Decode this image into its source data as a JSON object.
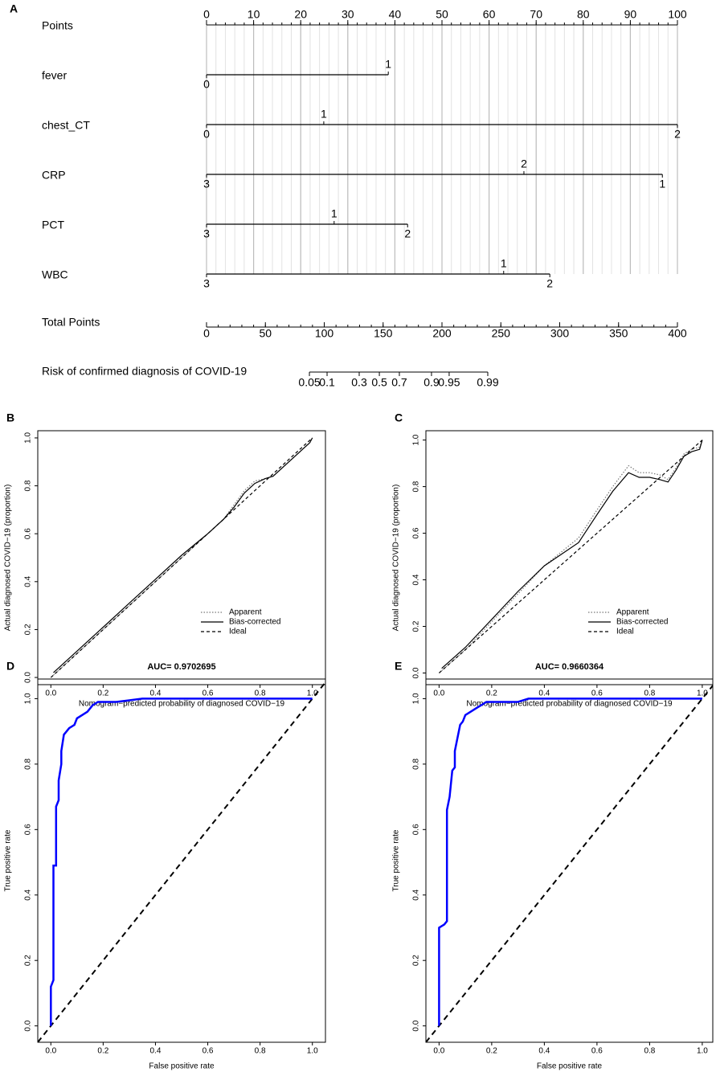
{
  "chart_data": [
    {
      "type": "nomogram",
      "panel": "A",
      "points": {
        "label": "Points",
        "lim": [
          0,
          100
        ],
        "ticks": [
          0,
          10,
          20,
          30,
          40,
          50,
          60,
          70,
          80,
          90,
          100
        ]
      },
      "variables": [
        {
          "name": "fever",
          "levels": [
            {
              "label": "0",
              "points": 0
            },
            {
              "label": "1",
              "points": 38.6
            }
          ]
        },
        {
          "name": "chest_CT",
          "levels": [
            {
              "label": "0",
              "points": 0
            },
            {
              "label": "1",
              "points": 24.9
            },
            {
              "label": "2",
              "points": 100
            }
          ]
        },
        {
          "name": "CRP",
          "levels": [
            {
              "label": "3",
              "points": 0
            },
            {
              "label": "2",
              "points": 67.4
            },
            {
              "label": "1",
              "points": 96.8
            }
          ]
        },
        {
          "name": "PCT",
          "levels": [
            {
              "label": "3",
              "points": 0
            },
            {
              "label": "1",
              "points": 27.1
            },
            {
              "label": "2",
              "points": 42.7
            }
          ]
        },
        {
          "name": "WBC",
          "levels": [
            {
              "label": "3",
              "points": 0
            },
            {
              "label": "1",
              "points": 63.1
            },
            {
              "label": "2",
              "points": 72.9
            }
          ]
        }
      ],
      "total_points": {
        "label": "Total Points",
        "lim": [
          0,
          400
        ],
        "ticks": [
          0,
          50,
          100,
          150,
          200,
          250,
          300,
          350,
          400
        ]
      },
      "risk": {
        "label": "Risk of confirmed diagnosis of COVID-19",
        "ticks": [
          {
            "risk": 0.05,
            "points": 87.4
          },
          {
            "risk": 0.1,
            "points": 102.4
          },
          {
            "risk": 0.3,
            "points": 129.7
          },
          {
            "risk": 0.5,
            "points": 146.8
          },
          {
            "risk": 0.7,
            "points": 163.8
          },
          {
            "risk": 0.9,
            "points": 191.1
          },
          {
            "risk": 0.95,
            "points": 206.1
          },
          {
            "risk": 0.99,
            "points": 238.9
          }
        ]
      }
    },
    {
      "type": "calibration",
      "panel": "B",
      "xlabel": "Nomogram−predicted probability of diagnosed COVID−19",
      "ylabel": "Actual diagnosed COVID−19 (proportion)",
      "xlim": [
        -0.05,
        1.05
      ],
      "ylim": [
        -0.03,
        1.03
      ],
      "xticks": [
        {
          "value": 0,
          "label": "0.0"
        },
        0.2,
        0.4,
        0.6,
        0.8,
        {
          "value": 1,
          "label": "1.0"
        }
      ],
      "yticks": [
        {
          "value": 0,
          "label": "0.0"
        },
        0.2,
        0.4,
        0.6,
        0.8,
        {
          "value": 1,
          "label": "1.0"
        }
      ],
      "legend": "bottom-right",
      "series": [
        {
          "name": "Apparent",
          "style": "dotted",
          "color": "#777777",
          "x": [
            0.01,
            0.1,
            0.2,
            0.3,
            0.4,
            0.5,
            0.6,
            0.66,
            0.7,
            0.74,
            0.78,
            0.82,
            0.85,
            0.9,
            0.95,
            0.99,
            1.0
          ],
          "values": [
            0.01,
            0.1,
            0.2,
            0.3,
            0.4,
            0.5,
            0.6,
            0.66,
            0.72,
            0.78,
            0.82,
            0.83,
            0.84,
            0.89,
            0.94,
            0.98,
            1.0
          ]
        },
        {
          "name": "Bias-corrected",
          "style": "solid",
          "color": "#000000",
          "x": [
            0.01,
            0.1,
            0.2,
            0.3,
            0.4,
            0.5,
            0.6,
            0.66,
            0.7,
            0.74,
            0.78,
            0.82,
            0.85,
            0.9,
            0.95,
            0.99,
            1.0
          ],
          "values": [
            0.02,
            0.11,
            0.21,
            0.31,
            0.41,
            0.51,
            0.6,
            0.66,
            0.71,
            0.77,
            0.81,
            0.83,
            0.84,
            0.89,
            0.94,
            0.98,
            1.0
          ]
        },
        {
          "name": "Ideal",
          "style": "dashed",
          "color": "#000000",
          "x": [
            0,
            1
          ],
          "values": [
            0,
            1
          ]
        }
      ]
    },
    {
      "type": "calibration",
      "panel": "C",
      "xlabel": "Nomogram−predicted probability of diagnosed COVID−19",
      "ylabel": "Actual diagnosed COVID−19 (proportion)",
      "xlim": [
        -0.05,
        1.04
      ],
      "ylim": [
        -0.05,
        1.04
      ],
      "xticks": [
        {
          "value": 0,
          "label": "0.0"
        },
        0.2,
        0.4,
        0.6,
        0.8,
        {
          "value": 1,
          "label": "1.0"
        }
      ],
      "yticks": [
        {
          "value": 0,
          "label": "0.0"
        },
        0.2,
        0.4,
        0.6,
        0.8,
        {
          "value": 1,
          "label": "1.0"
        }
      ],
      "legend": "bottom-right",
      "series": [
        {
          "name": "Apparent",
          "style": "dotted",
          "color": "#777777",
          "x": [
            0.01,
            0.1,
            0.2,
            0.3,
            0.4,
            0.53,
            0.6,
            0.66,
            0.72,
            0.76,
            0.8,
            0.84,
            0.87,
            0.9,
            0.93,
            0.96,
            0.99,
            1.0
          ],
          "values": [
            0.01,
            0.1,
            0.22,
            0.34,
            0.46,
            0.58,
            0.7,
            0.8,
            0.89,
            0.86,
            0.86,
            0.85,
            0.83,
            0.88,
            0.94,
            0.96,
            0.97,
            1.0
          ]
        },
        {
          "name": "Bias-corrected",
          "style": "solid",
          "color": "#000000",
          "x": [
            0.01,
            0.1,
            0.2,
            0.3,
            0.4,
            0.53,
            0.6,
            0.66,
            0.72,
            0.76,
            0.8,
            0.84,
            0.87,
            0.9,
            0.93,
            0.96,
            0.99,
            1.0
          ],
          "values": [
            0.02,
            0.11,
            0.23,
            0.35,
            0.46,
            0.56,
            0.68,
            0.78,
            0.86,
            0.84,
            0.84,
            0.83,
            0.82,
            0.87,
            0.93,
            0.95,
            0.96,
            1.0
          ]
        },
        {
          "name": "Ideal",
          "style": "dashed",
          "color": "#000000",
          "x": [
            0,
            1
          ],
          "values": [
            0,
            1
          ]
        }
      ]
    },
    {
      "type": "roc",
      "panel": "D",
      "title": "AUC= 0.9702695",
      "xlabel": "False positive rate",
      "ylabel": "True positive rate",
      "xlim": [
        -0.05,
        1.05
      ],
      "ylim": [
        -0.05,
        1.06
      ],
      "xticks": [
        {
          "value": 0,
          "label": "0.0"
        },
        0.2,
        0.4,
        0.6,
        0.8,
        {
          "value": 1,
          "label": "1.0"
        }
      ],
      "yticks": [
        {
          "value": 0,
          "label": "0.0"
        },
        0.2,
        0.4,
        0.6,
        0.8,
        {
          "value": 1,
          "label": "1.0"
        }
      ],
      "series": [
        {
          "color": "#0000ff",
          "x": [
            0,
            0,
            0.01,
            0.01,
            0.01,
            0.02,
            0.02,
            0.03,
            0.03,
            0.04,
            0.04,
            0.05,
            0.06,
            0.07,
            0.09,
            0.1,
            0.12,
            0.14,
            0.16,
            0.18,
            0.25,
            0.3,
            0.35,
            0.41,
            1
          ],
          "values": [
            0,
            0.12,
            0.14,
            0.44,
            0.49,
            0.49,
            0.67,
            0.69,
            0.75,
            0.8,
            0.84,
            0.89,
            0.9,
            0.91,
            0.92,
            0.94,
            0.95,
            0.96,
            0.98,
            0.99,
            0.99,
            0.995,
            1,
            1,
            1
          ]
        }
      ]
    },
    {
      "type": "roc",
      "panel": "E",
      "title": "AUC= 0.9660364",
      "xlabel": "False positive rate",
      "ylabel": "True positive rate",
      "xlim": [
        -0.05,
        1.04
      ],
      "ylim": [
        -0.05,
        1.06
      ],
      "xticks": [
        {
          "value": 0,
          "label": "0.0"
        },
        0.2,
        0.4,
        0.6,
        0.8,
        {
          "value": 1,
          "label": "1.0"
        }
      ],
      "yticks": [
        {
          "value": 0,
          "label": "0.0"
        },
        0.2,
        0.4,
        0.6,
        0.8,
        {
          "value": 1,
          "label": "1.0"
        }
      ],
      "series": [
        {
          "color": "#0000ff",
          "x": [
            0,
            0,
            0.02,
            0.03,
            0.03,
            0.04,
            0.05,
            0.06,
            0.06,
            0.07,
            0.08,
            0.09,
            0.1,
            0.12,
            0.14,
            0.16,
            0.18,
            0.3,
            0.34,
            1
          ],
          "values": [
            0,
            0.3,
            0.31,
            0.32,
            0.66,
            0.7,
            0.78,
            0.79,
            0.84,
            0.88,
            0.92,
            0.93,
            0.95,
            0.96,
            0.97,
            0.98,
            0.99,
            0.99,
            1,
            1
          ]
        }
      ]
    }
  ]
}
